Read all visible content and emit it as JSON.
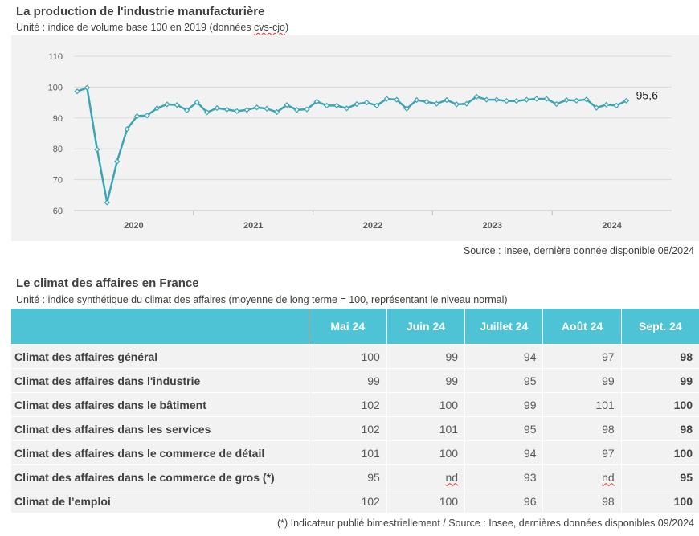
{
  "chart_data": {
    "type": "line",
    "title": "La production de l'industrie manufacturière",
    "subtitle_main": "Unité : indice de volume base 100 en 2019 (données ",
    "subtitle_squiggle": "cvs-cjo",
    "subtitle_end": ")",
    "ylim": [
      60,
      110
    ],
    "yticks": [
      60,
      70,
      80,
      90,
      100,
      110
    ],
    "xtick_labels": [
      "2020",
      "2021",
      "2022",
      "2023",
      "2024"
    ],
    "grid": true,
    "last_label": "95,6",
    "series": [
      {
        "color": "#3aa5b5",
        "values": [
          98.6,
          99.8,
          79.8,
          62.6,
          75.9,
          86.4,
          90.6,
          90.8,
          93.1,
          94.4,
          94.2,
          92.5,
          95.1,
          91.8,
          93.2,
          92.7,
          92.2,
          92.6,
          93.4,
          93.0,
          91.9,
          94.2,
          92.6,
          92.8,
          95.3,
          94.0,
          94.0,
          93.1,
          94.5,
          95.0,
          94.0,
          96.2,
          95.9,
          93.0,
          95.8,
          95.2,
          94.6,
          95.8,
          94.4,
          94.6,
          96.9,
          95.9,
          95.9,
          95.5,
          95.5,
          95.9,
          96.2,
          96.2,
          94.5,
          95.8,
          95.6,
          96.0,
          93.3,
          94.3,
          94.0,
          95.6
        ]
      }
    ],
    "source": "Source : Insee, dernière donnée disponible 08/2024"
  },
  "table": {
    "title": "Le climat des affaires en France",
    "subtitle": "Unité : indice synthétique du climat des affaires (moyenne de long terme = 100, représentant le niveau normal)",
    "columns": [
      "Mai 24",
      "Juin 24",
      "Juillet 24",
      "Août 24",
      "Sept. 24"
    ],
    "rows": [
      {
        "label": "Climat des affaires général",
        "values": [
          "100",
          "99",
          "94",
          "97",
          "98"
        ]
      },
      {
        "label": "Climat des affaires dans l'industrie",
        "values": [
          "99",
          "99",
          "95",
          "99",
          "99"
        ]
      },
      {
        "label": "Climat des affaires dans le bâtiment",
        "values": [
          "102",
          "100",
          "99",
          "101",
          "100"
        ]
      },
      {
        "label": "Climat des affaires dans les services",
        "values": [
          "102",
          "101",
          "95",
          "98",
          "98"
        ]
      },
      {
        "label": "Climat des affaires dans le commerce de détail",
        "values": [
          "101",
          "100",
          "94",
          "97",
          "100"
        ]
      },
      {
        "label": "Climat des affaires dans le commerce de gros (*)",
        "values": [
          "95",
          "nd",
          "93",
          "nd",
          "95"
        ]
      },
      {
        "label": "Climat de l’emploi",
        "values": [
          "102",
          "100",
          "96",
          "98",
          "100"
        ]
      }
    ],
    "footnote": "(*) Indicateur publié bimestriellement / Source : Insee, dernières données disponibles 09/2024"
  }
}
